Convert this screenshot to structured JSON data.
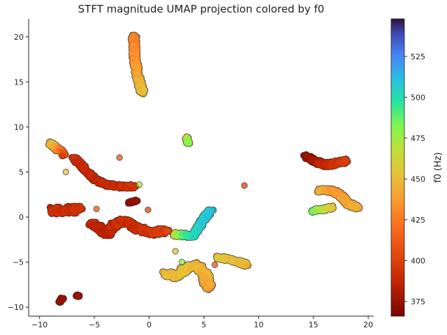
{
  "chart_data": {
    "type": "scatter",
    "title": "STFT magnitude UMAP projection colored by f0",
    "xlabel": "",
    "ylabel": "",
    "xlim": [
      -11,
      20.5
    ],
    "ylim": [
      -11,
      22
    ],
    "x_ticks": [
      -10,
      -5,
      0,
      5,
      10,
      15,
      20
    ],
    "y_ticks": [
      -10,
      -5,
      0,
      5,
      10,
      15,
      20
    ],
    "colorbar": {
      "label": "f0 (Hz)",
      "range": [
        366,
        548
      ],
      "ticks": [
        375,
        400,
        425,
        450,
        475,
        500,
        525
      ],
      "colormap": "turbo"
    },
    "grid": false,
    "clusters": [
      {
        "name": "top-streak",
        "polyline": [
          [
            -1.4,
            20.0
          ],
          [
            -1.3,
            17.5
          ],
          [
            -1.1,
            16.0
          ],
          [
            -0.8,
            14.5
          ],
          [
            -0.6,
            13.8
          ]
        ],
        "f0": [
          428,
          432,
          440,
          447,
          450
        ],
        "width": 0.55
      },
      {
        "name": "upper-left-tail",
        "polyline": [
          [
            -9.0,
            8.2
          ],
          [
            -8.4,
            7.6
          ],
          [
            -7.8,
            7.0
          ]
        ],
        "f0": [
          455,
          440,
          405
        ],
        "width": 0.6
      },
      {
        "name": "left-diagonal",
        "polyline": [
          [
            -6.9,
            6.6
          ],
          [
            -6.0,
            5.5
          ],
          [
            -5.0,
            4.2
          ],
          [
            -4.0,
            3.6
          ],
          [
            -2.5,
            3.4
          ],
          [
            -1.5,
            3.4
          ]
        ],
        "f0": [
          392,
          390,
          388,
          389,
          390,
          395
        ],
        "width": 0.55
      },
      {
        "name": "left-blob",
        "polyline": [
          [
            -8.8,
            0.8
          ],
          [
            -8.0,
            0.7
          ],
          [
            -7.2,
            0.8
          ],
          [
            -6.4,
            0.9
          ]
        ],
        "f0": [
          392,
          390,
          391,
          395
        ],
        "width": 1.1
      },
      {
        "name": "center-left-blob",
        "polyline": [
          [
            -5.2,
            -0.7
          ],
          [
            -4.4,
            -1.3
          ],
          [
            -3.8,
            -1.9
          ],
          [
            -3.2,
            -0.8
          ],
          [
            -2.2,
            -0.4
          ],
          [
            -1.2,
            -1.2
          ],
          [
            0.2,
            -1.7
          ],
          [
            1.6,
            -1.6
          ]
        ],
        "f0": [
          388,
          386,
          385,
          390,
          392,
          390,
          395,
          400
        ],
        "width": 0.9
      },
      {
        "name": "cyan-arm",
        "polyline": [
          [
            2.2,
            -1.9
          ],
          [
            3.2,
            -2.0
          ],
          [
            4.0,
            -2.1
          ],
          [
            4.5,
            -1.2
          ],
          [
            5.0,
            -0.2
          ],
          [
            5.6,
            0.7
          ]
        ],
        "f0": [
          460,
          490,
          500,
          505,
          508,
          510
        ],
        "width": 0.55
      },
      {
        "name": "lower-yellow",
        "polyline": [
          [
            1.4,
            -6.3
          ],
          [
            2.6,
            -6.6
          ],
          [
            3.4,
            -5.6
          ],
          [
            4.4,
            -5.4
          ],
          [
            5.1,
            -6.4
          ],
          [
            5.4,
            -7.8
          ]
        ],
        "f0": [
          448,
          450,
          452,
          448,
          446,
          440
        ],
        "width": 0.9
      },
      {
        "name": "lower-right-yellow",
        "polyline": [
          [
            6.3,
            -4.5
          ],
          [
            7.3,
            -4.7
          ],
          [
            8.2,
            -5.0
          ],
          [
            8.9,
            -5.3
          ]
        ],
        "f0": [
          455,
          452,
          450,
          448
        ],
        "width": 0.55
      },
      {
        "name": "right-top-red",
        "polyline": [
          [
            14.4,
            6.7
          ],
          [
            15.2,
            6.1
          ],
          [
            16.2,
            5.8
          ],
          [
            17.2,
            6.0
          ],
          [
            18.0,
            6.2
          ]
        ],
        "f0": [
          372,
          378,
          390,
          393,
          396
        ],
        "width": 0.7
      },
      {
        "name": "right-yellow",
        "polyline": [
          [
            15.6,
            2.9
          ],
          [
            16.4,
            3.0
          ],
          [
            17.3,
            2.6
          ],
          [
            18.2,
            1.5
          ],
          [
            19.1,
            1.0
          ]
        ],
        "f0": [
          448,
          440,
          435,
          440,
          445
        ],
        "width": 0.65
      },
      {
        "name": "right-cyan-tail",
        "polyline": [
          [
            15.0,
            0.7
          ],
          [
            16.0,
            0.9
          ],
          [
            16.8,
            1.1
          ]
        ],
        "f0": [
          485,
          470,
          455
        ],
        "width": 0.45
      },
      {
        "name": "green-dot-cluster",
        "polyline": [
          [
            3.4,
            8.8
          ],
          [
            3.6,
            8.2
          ]
        ],
        "f0": [
          470,
          478
        ],
        "width": 0.35
      },
      {
        "name": "bottom-left-dark",
        "polyline": [
          [
            -8.1,
            -9.4
          ],
          [
            -7.9,
            -9.0
          ]
        ],
        "f0": [
          372,
          374
        ],
        "width": 0.3
      },
      {
        "name": "bottom-left-dark-2",
        "polyline": [
          [
            -6.6,
            -8.7
          ],
          [
            -6.4,
            -8.8
          ]
        ],
        "f0": [
          372,
          374
        ],
        "width": 0.25
      },
      {
        "name": "small-dark-center",
        "polyline": [
          [
            -1.8,
            1.6
          ],
          [
            -1.2,
            1.8
          ]
        ],
        "f0": [
          372,
          375
        ],
        "width": 0.25
      }
    ],
    "outliers": [
      {
        "x": 8.7,
        "y": 3.5,
        "f0": 400
      },
      {
        "x": -2.7,
        "y": 6.6,
        "f0": 410
      },
      {
        "x": -7.6,
        "y": 5.0,
        "f0": 450
      },
      {
        "x": -0.1,
        "y": 0.8,
        "f0": 402
      },
      {
        "x": 2.4,
        "y": -3.8,
        "f0": 450
      },
      {
        "x": 6.0,
        "y": -5.3,
        "f0": 410
      },
      {
        "x": -4.8,
        "y": 0.9,
        "f0": 410
      },
      {
        "x": 3.0,
        "y": -5.0,
        "f0": 480
      },
      {
        "x": -0.9,
        "y": 3.6,
        "f0": 470
      }
    ]
  }
}
